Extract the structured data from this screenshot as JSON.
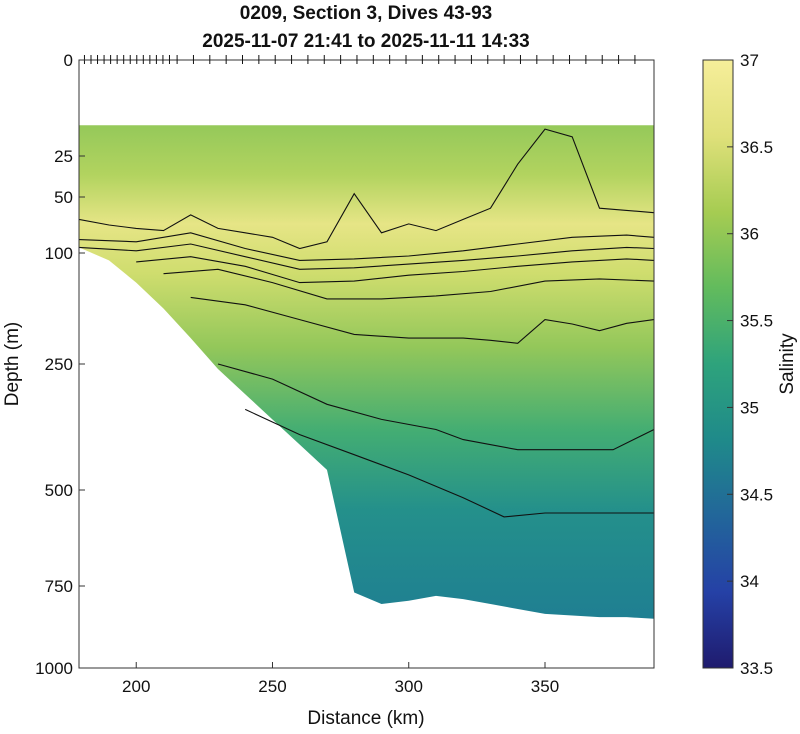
{
  "chart_data": {
    "type": "heatmap",
    "title_lines": [
      "0209, Section 3, Dives 43-93",
      "2025-11-07 21:41 to 2025-11-11 14:33"
    ],
    "xlabel": "Distance (km)",
    "ylabel": "Depth (m)",
    "colorbar_label": "Salinity",
    "xlim": [
      179,
      390
    ],
    "x_ticks": [
      200,
      250,
      300,
      350
    ],
    "y_scale": "nonlinear (stretched near surface)",
    "y_ticks": [
      0,
      25,
      50,
      100,
      250,
      500,
      750,
      1000
    ],
    "colorbar_ticks": [
      33.5,
      34,
      34.5,
      35,
      35.5,
      36,
      36.5,
      37
    ],
    "colorbar_range": [
      33.5,
      37
    ],
    "colormap": [
      "#1f1b6e",
      "#2541a6",
      "#22669a",
      "#1f8a8a",
      "#2ea37c",
      "#62bb5d",
      "#a6cc52",
      "#dfe07a",
      "#f6ee9a"
    ],
    "dive_markers": "short tick marks along the top axis at each dive location",
    "data_top_depth_m": 17,
    "bottom_profile": {
      "x_km": [
        179,
        190,
        200,
        210,
        220,
        230,
        240,
        250,
        260,
        270,
        280,
        290,
        300,
        310,
        320,
        330,
        340,
        350,
        360,
        370,
        380,
        390
      ],
      "depth_m": [
        95,
        110,
        140,
        175,
        215,
        260,
        310,
        360,
        410,
        460,
        770,
        805,
        795,
        780,
        790,
        805,
        820,
        835,
        840,
        845,
        845,
        850
      ]
    },
    "contours": [
      {
        "level": 36.2,
        "x_km": [
          179,
          190,
          200,
          210,
          220,
          230,
          240,
          250,
          260,
          270,
          280,
          290,
          300,
          310,
          320,
          330,
          340,
          350,
          360,
          370,
          380,
          390
        ],
        "depth_m": [
          70,
          75,
          78,
          80,
          66,
          78,
          82,
          86,
          96,
          90,
          48,
          82,
          74,
          80,
          70,
          60,
          30,
          18,
          20,
          60,
          62,
          64
        ]
      },
      {
        "level": 36.4,
        "x_km": [
          179,
          200,
          220,
          240,
          260,
          280,
          300,
          320,
          340,
          360,
          380,
          390
        ],
        "depth_m": [
          88,
          90,
          82,
          96,
          110,
          108,
          104,
          98,
          92,
          86,
          84,
          86
        ]
      },
      {
        "level": 36.6,
        "x_km": [
          179,
          200,
          220,
          240,
          260,
          280,
          300,
          320,
          340,
          360,
          380,
          390
        ],
        "depth_m": [
          95,
          98,
          92,
          105,
          122,
          120,
          115,
          110,
          104,
          98,
          95,
          96
        ]
      },
      {
        "level": 36.7,
        "x_km": [
          200,
          220,
          240,
          260,
          280,
          300,
          320,
          340,
          360,
          380,
          390
        ],
        "depth_m": [
          112,
          105,
          118,
          140,
          138,
          130,
          125,
          118,
          112,
          108,
          110
        ]
      },
      {
        "level": 36.8,
        "x_km": [
          210,
          230,
          250,
          270,
          290,
          310,
          330,
          350,
          370,
          390
        ],
        "depth_m": [
          128,
          122,
          140,
          162,
          162,
          158,
          152,
          138,
          135,
          138
        ]
      },
      {
        "level": 36.5,
        "x_km": [
          220,
          240,
          260,
          280,
          300,
          320,
          330,
          340,
          350,
          360,
          370,
          380,
          390
        ],
        "depth_m": [
          160,
          170,
          190,
          210,
          215,
          215,
          218,
          222,
          190,
          196,
          205,
          195,
          190
        ]
      },
      {
        "level": 36.2,
        "x_km": [
          230,
          250,
          270,
          290,
          310,
          320,
          340,
          360,
          375,
          390
        ],
        "depth_m": [
          250,
          280,
          330,
          360,
          380,
          400,
          420,
          420,
          420,
          380
        ]
      },
      {
        "level": 35.8,
        "x_km": [
          240,
          260,
          280,
          300,
          320,
          335,
          350,
          370,
          390
        ],
        "depth_m": [
          340,
          390,
          430,
          470,
          520,
          570,
          560,
          560,
          560
        ]
      }
    ]
  }
}
